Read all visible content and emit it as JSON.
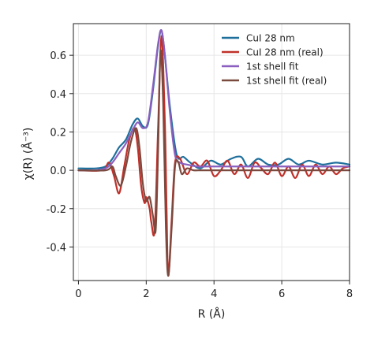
{
  "chart_data": {
    "type": "line",
    "xlabel": "R (Å)",
    "ylabel": "χ(R) (Å⁻³)",
    "xlim": [
      -0.15,
      8.0
    ],
    "ylim": [
      -0.575,
      0.765
    ],
    "xticks": [
      0,
      2,
      4,
      6,
      8
    ],
    "xtick_labels": [
      "0",
      "2",
      "4",
      "6",
      "8"
    ],
    "yticks": [
      -0.4,
      -0.2,
      0.0,
      0.2,
      0.4,
      0.6
    ],
    "ytick_labels": [
      "-0.4",
      "-0.2",
      "0.0",
      "0.2",
      "0.4",
      "0.6"
    ],
    "grid": true,
    "legend_position": "top-right",
    "series": [
      {
        "name": "CuI 28 nm",
        "color": "#1f6f9c",
        "x": [
          0,
          0.5,
          0.8,
          1.0,
          1.2,
          1.4,
          1.6,
          1.75,
          1.9,
          2.05,
          2.2,
          2.35,
          2.45,
          2.55,
          2.7,
          2.9,
          3.1,
          3.3,
          3.6,
          3.9,
          4.2,
          4.5,
          4.8,
          5.0,
          5.3,
          5.6,
          5.9,
          6.2,
          6.5,
          6.8,
          7.2,
          7.6,
          8.0
        ],
        "values": [
          0.01,
          0.01,
          0.02,
          0.06,
          0.12,
          0.16,
          0.24,
          0.27,
          0.23,
          0.24,
          0.42,
          0.65,
          0.73,
          0.6,
          0.33,
          0.08,
          0.07,
          0.04,
          0.01,
          0.05,
          0.03,
          0.06,
          0.07,
          0.02,
          0.06,
          0.03,
          0.03,
          0.06,
          0.03,
          0.05,
          0.03,
          0.04,
          0.03
        ]
      },
      {
        "name": "CuI 28 nm (real)",
        "color": "#c0302a",
        "x": [
          0,
          0.7,
          0.9,
          1.05,
          1.2,
          1.35,
          1.5,
          1.65,
          1.75,
          1.85,
          1.95,
          2.0,
          2.1,
          2.15,
          2.25,
          2.35,
          2.45,
          2.55,
          2.6,
          2.65,
          2.75,
          2.85,
          3.0,
          3.2,
          3.4,
          3.6,
          3.8,
          4.0,
          4.2,
          4.4,
          4.6,
          4.8,
          5.0,
          5.2,
          5.4,
          5.6,
          5.8,
          6.0,
          6.2,
          6.4,
          6.6,
          6.8,
          7.0,
          7.2,
          7.4,
          7.6,
          7.8,
          8.0
        ],
        "values": [
          0.0,
          0.0,
          0.04,
          -0.03,
          -0.12,
          0.02,
          0.16,
          0.22,
          0.12,
          -0.08,
          -0.17,
          -0.14,
          -0.2,
          -0.27,
          -0.31,
          0.22,
          0.7,
          0.25,
          -0.2,
          -0.55,
          -0.26,
          0.04,
          0.06,
          -0.02,
          0.04,
          0.02,
          0.05,
          -0.03,
          0.0,
          0.05,
          -0.02,
          0.03,
          -0.04,
          0.04,
          0.01,
          -0.02,
          0.04,
          -0.03,
          0.02,
          -0.04,
          0.03,
          -0.03,
          0.03,
          -0.02,
          0.02,
          -0.02,
          0.01,
          0.02
        ]
      },
      {
        "name": "1st shell fit",
        "color": "#8a5fbf",
        "x": [
          0,
          0.5,
          0.8,
          1.0,
          1.2,
          1.4,
          1.6,
          1.75,
          1.9,
          2.05,
          2.2,
          2.35,
          2.45,
          2.55,
          2.7,
          2.85,
          3.0,
          3.2,
          3.5,
          3.8,
          4.2,
          4.6,
          5.0,
          5.5,
          6.0,
          6.5,
          7.0,
          7.5,
          8.0
        ],
        "values": [
          0.0,
          0.0,
          0.01,
          0.04,
          0.09,
          0.14,
          0.21,
          0.25,
          0.22,
          0.25,
          0.44,
          0.66,
          0.73,
          0.6,
          0.3,
          0.08,
          0.04,
          0.03,
          0.02,
          0.02,
          0.02,
          0.02,
          0.02,
          0.02,
          0.02,
          0.02,
          0.02,
          0.02,
          0.02
        ]
      },
      {
        "name": "1st shell fit (real)",
        "color": "#7a4a3f",
        "x": [
          0,
          0.8,
          1.0,
          1.1,
          1.25,
          1.4,
          1.55,
          1.7,
          1.8,
          1.9,
          2.0,
          2.1,
          2.2,
          2.28,
          2.35,
          2.42,
          2.5,
          2.58,
          2.65,
          2.75,
          2.85,
          2.95,
          3.05,
          3.2,
          3.4,
          3.6,
          3.8,
          4.2,
          4.6,
          5.0,
          5.5,
          6.0,
          6.5,
          7.0,
          7.5,
          8.0
        ],
        "values": [
          0.0,
          0.0,
          0.02,
          -0.03,
          -0.08,
          0.02,
          0.15,
          0.22,
          0.12,
          -0.07,
          -0.16,
          -0.14,
          -0.24,
          -0.31,
          0.1,
          0.62,
          0.35,
          -0.3,
          -0.55,
          -0.3,
          0.02,
          0.04,
          -0.02,
          0.01,
          0.0,
          0.0,
          0.0,
          0.0,
          0.0,
          0.0,
          0.0,
          0.0,
          0.0,
          0.0,
          0.0,
          0.0
        ]
      }
    ]
  }
}
